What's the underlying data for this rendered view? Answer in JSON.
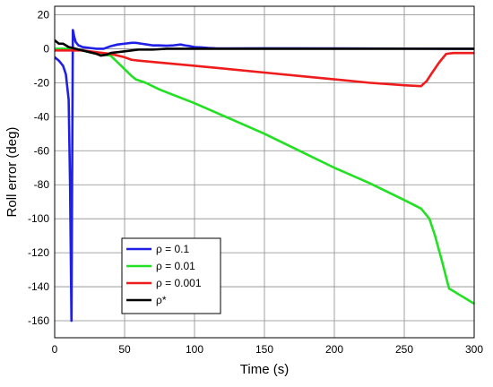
{
  "chart_data": {
    "type": "line",
    "title": "",
    "xlabel": "Time  (s)",
    "ylabel": "Roll error (deg)",
    "xlim": [
      0,
      300
    ],
    "ylim": [
      -170,
      25
    ],
    "x_ticks": [
      0,
      50,
      100,
      150,
      200,
      250,
      300
    ],
    "y_ticks": [
      20,
      0,
      -20,
      -40,
      -60,
      -80,
      -100,
      -120,
      -140,
      -160
    ],
    "grid": true,
    "legend_position": "bottom-left",
    "series": [
      {
        "name": "ρ = 0.1",
        "color": "#1f1fe6",
        "points": [
          [
            0,
            -5
          ],
          [
            3,
            -7
          ],
          [
            6,
            -10
          ],
          [
            8,
            -15
          ],
          [
            10,
            -30
          ],
          [
            11,
            -80
          ],
          [
            12,
            -160
          ],
          [
            13,
            11
          ],
          [
            14,
            7
          ],
          [
            15,
            4
          ],
          [
            17,
            2
          ],
          [
            20,
            1
          ],
          [
            25,
            0.5
          ],
          [
            30,
            0
          ],
          [
            35,
            0
          ],
          [
            40,
            1.5
          ],
          [
            45,
            2.5
          ],
          [
            50,
            3
          ],
          [
            55,
            3.5
          ],
          [
            58,
            3.5
          ],
          [
            62,
            3
          ],
          [
            66,
            2.5
          ],
          [
            70,
            2
          ],
          [
            75,
            2
          ],
          [
            80,
            1.8
          ],
          [
            85,
            2
          ],
          [
            90,
            2.5
          ],
          [
            93,
            2
          ],
          [
            97,
            1.5
          ],
          [
            100,
            1
          ],
          [
            105,
            0.8
          ],
          [
            110,
            0.5
          ],
          [
            115,
            0.3
          ],
          [
            120,
            0.2
          ],
          [
            150,
            0.3
          ],
          [
            200,
            0.2
          ],
          [
            250,
            0.1
          ],
          [
            300,
            0
          ]
        ]
      },
      {
        "name": "ρ = 0.01",
        "color": "#22e022",
        "points": [
          [
            0,
            0
          ],
          [
            10,
            0
          ],
          [
            20,
            -1
          ],
          [
            30,
            -3
          ],
          [
            40,
            -4
          ],
          [
            45,
            -8
          ],
          [
            50,
            -12
          ],
          [
            55,
            -16
          ],
          [
            58,
            -18
          ],
          [
            65,
            -20
          ],
          [
            75,
            -24
          ],
          [
            100,
            -32
          ],
          [
            125,
            -41
          ],
          [
            150,
            -50
          ],
          [
            175,
            -60
          ],
          [
            200,
            -70
          ],
          [
            225,
            -79
          ],
          [
            250,
            -89
          ],
          [
            262,
            -94
          ],
          [
            268,
            -100
          ],
          [
            272,
            -110
          ],
          [
            277,
            -125
          ],
          [
            282,
            -141
          ],
          [
            290,
            -145
          ],
          [
            300,
            -150
          ]
        ]
      },
      {
        "name": "ρ = 0.001",
        "color": "#ee1c1c",
        "points": [
          [
            0,
            -1
          ],
          [
            10,
            -1
          ],
          [
            20,
            -1
          ],
          [
            30,
            -2
          ],
          [
            40,
            -3
          ],
          [
            50,
            -5
          ],
          [
            55,
            -6.5
          ],
          [
            60,
            -7
          ],
          [
            80,
            -8.5
          ],
          [
            100,
            -10
          ],
          [
            125,
            -12
          ],
          [
            150,
            -14
          ],
          [
            175,
            -16
          ],
          [
            200,
            -18
          ],
          [
            225,
            -20
          ],
          [
            250,
            -21.5
          ],
          [
            262,
            -22
          ],
          [
            266,
            -19
          ],
          [
            270,
            -14
          ],
          [
            275,
            -8
          ],
          [
            280,
            -3
          ],
          [
            285,
            -2.5
          ],
          [
            290,
            -2.5
          ],
          [
            300,
            -2.5
          ]
        ]
      },
      {
        "name": "ρ*",
        "color": "#000000",
        "points": [
          [
            0,
            5
          ],
          [
            3,
            3
          ],
          [
            6,
            3
          ],
          [
            8,
            2
          ],
          [
            10,
            1
          ],
          [
            15,
            0
          ],
          [
            20,
            -1
          ],
          [
            25,
            -2
          ],
          [
            30,
            -3
          ],
          [
            33,
            -4
          ],
          [
            37,
            -3.5
          ],
          [
            40,
            -2.5
          ],
          [
            45,
            -2
          ],
          [
            50,
            -1.5
          ],
          [
            55,
            -1
          ],
          [
            60,
            -0.5
          ],
          [
            70,
            -0.5
          ],
          [
            80,
            0
          ],
          [
            100,
            0
          ],
          [
            150,
            0
          ],
          [
            200,
            0
          ],
          [
            250,
            0
          ],
          [
            300,
            0
          ]
        ]
      }
    ]
  }
}
